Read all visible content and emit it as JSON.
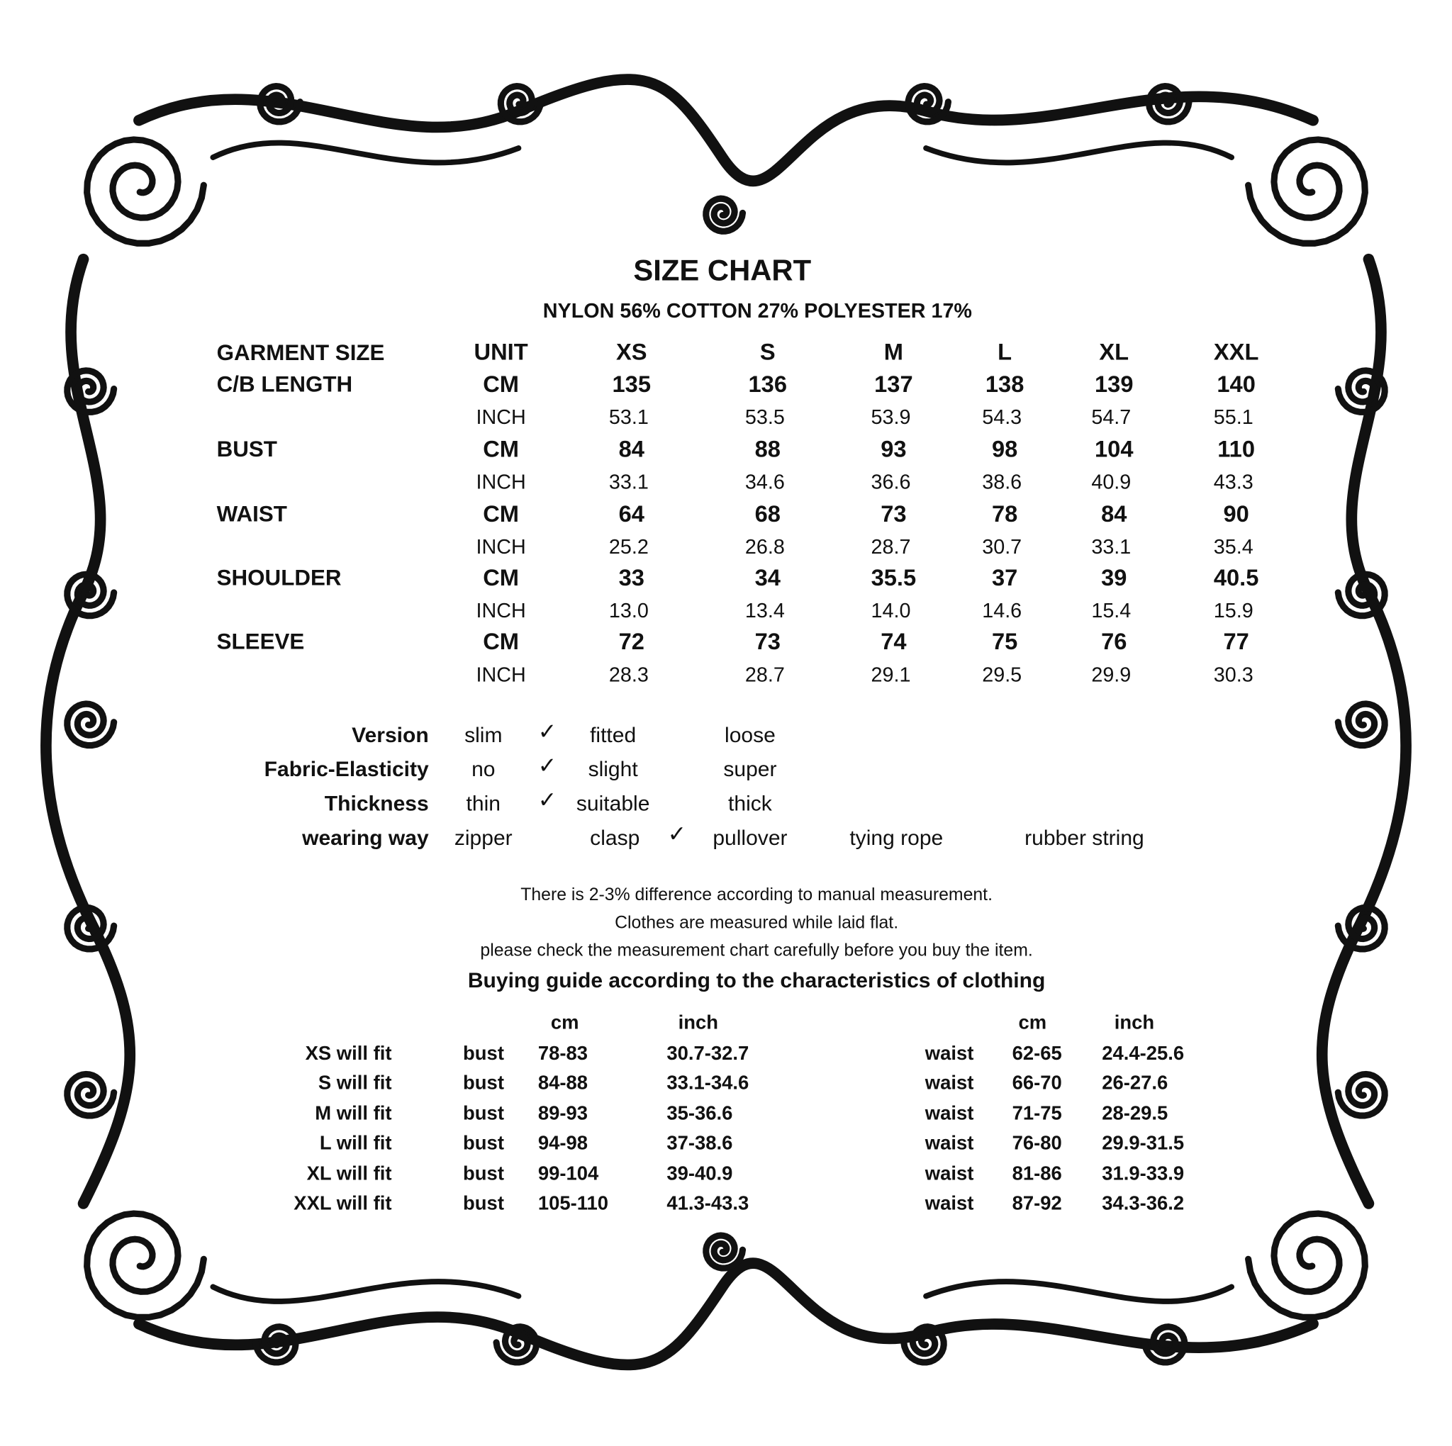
{
  "title": "SIZE CHART",
  "fabric": "NYLON 56% COTTON 27% POLYESTER 17%",
  "size_table": {
    "header": {
      "label": "GARMENT SIZE",
      "unit": "UNIT",
      "sizes": [
        "XS",
        "S",
        "M",
        "L",
        "XL",
        "XXL"
      ]
    },
    "rows": [
      {
        "label": "C/B LENGTH",
        "cm_unit": "CM",
        "cm": [
          "135",
          "136",
          "137",
          "138",
          "139",
          "140"
        ],
        "inch_unit": "INCH",
        "inch": [
          "53.1",
          "53.5",
          "53.9",
          "54.3",
          "54.7",
          "55.1"
        ]
      },
      {
        "label": "BUST",
        "cm_unit": "CM",
        "cm": [
          "84",
          "88",
          "93",
          "98",
          "104",
          "110"
        ],
        "inch_unit": "INCH",
        "inch": [
          "33.1",
          "34.6",
          "36.6",
          "38.6",
          "40.9",
          "43.3"
        ]
      },
      {
        "label": "WAIST",
        "cm_unit": "CM",
        "cm": [
          "64",
          "68",
          "73",
          "78",
          "84",
          "90"
        ],
        "inch_unit": "INCH",
        "inch": [
          "25.2",
          "26.8",
          "28.7",
          "30.7",
          "33.1",
          "35.4"
        ]
      },
      {
        "label": "SHOULDER",
        "cm_unit": "CM",
        "cm": [
          "33",
          "34",
          "35.5",
          "37",
          "39",
          "40.5"
        ],
        "inch_unit": "INCH",
        "inch": [
          "13.0",
          "13.4",
          "14.0",
          "14.6",
          "15.4",
          "15.9"
        ]
      },
      {
        "label": "SLEEVE",
        "cm_unit": "CM",
        "cm": [
          "72",
          "73",
          "74",
          "75",
          "76",
          "77"
        ],
        "inch_unit": "INCH",
        "inch": [
          "28.3",
          "28.7",
          "29.1",
          "29.5",
          "29.9",
          "30.3"
        ]
      }
    ]
  },
  "attributes": [
    {
      "label": "Version",
      "options": [
        "slim",
        "fitted",
        "loose"
      ],
      "selected": "fitted"
    },
    {
      "label": "Fabric-Elasticity",
      "options": [
        "no",
        "slight",
        "super"
      ],
      "selected": "slight"
    },
    {
      "label": "Thickness",
      "options": [
        "thin",
        "suitable",
        "thick"
      ],
      "selected": "suitable"
    },
    {
      "label": "wearing way",
      "options": [
        "zipper",
        "clasp",
        "pullover",
        "tying rope",
        "rubber string"
      ],
      "selected": "pullover"
    }
  ],
  "check_mark": "✓",
  "notes": [
    "There is 2-3% difference according to manual measurement.",
    "Clothes are measured while laid flat.",
    "please check the measurement chart carefully before you buy the item."
  ],
  "buying_guide": {
    "title": "Buying guide according to the characteristics of clothing",
    "headers": {
      "cm": "cm",
      "inch": "inch"
    },
    "rows": [
      {
        "label": "XS will  fit",
        "bust": "bust",
        "bust_cm": "78-83",
        "bust_inch": "30.7-32.7",
        "waist": "waist",
        "waist_cm": "62-65",
        "waist_inch": "24.4-25.6"
      },
      {
        "label": "S will  fit",
        "bust": "bust",
        "bust_cm": "84-88",
        "bust_inch": "33.1-34.6",
        "waist": "waist",
        "waist_cm": "66-70",
        "waist_inch": "26-27.6"
      },
      {
        "label": "M will fit",
        "bust": "bust",
        "bust_cm": "89-93",
        "bust_inch": "35-36.6",
        "waist": "waist",
        "waist_cm": "71-75",
        "waist_inch": "28-29.5"
      },
      {
        "label": "L will fit",
        "bust": "bust",
        "bust_cm": "94-98",
        "bust_inch": "37-38.6",
        "waist": "waist",
        "waist_cm": "76-80",
        "waist_inch": "29.9-31.5"
      },
      {
        "label": "XL will fit",
        "bust": "bust",
        "bust_cm": "99-104",
        "bust_inch": "39-40.9",
        "waist": "waist",
        "waist_cm": "81-86",
        "waist_inch": "31.9-33.9"
      },
      {
        "label": "XXL will fit",
        "bust": "bust",
        "bust_cm": "105-110",
        "bust_inch": "41.3-43.3",
        "waist": "waist",
        "waist_cm": "87-92",
        "waist_inch": "34.3-36.2"
      }
    ]
  },
  "colors": {
    "ink": "#111111",
    "background": "#ffffff"
  }
}
